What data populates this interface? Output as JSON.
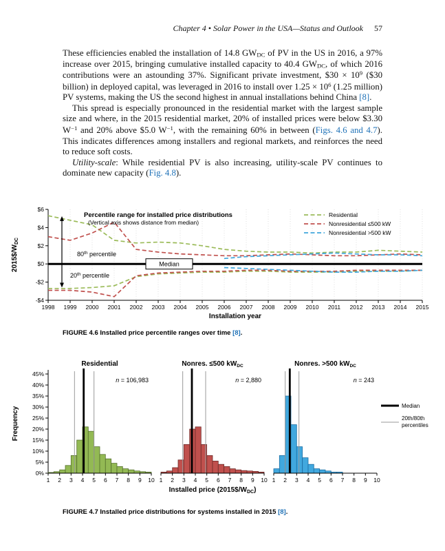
{
  "header": {
    "running_head": "Chapter 4 • Solar Power in the USA—Status and Outlook",
    "page_number": "57"
  },
  "paragraphs": {
    "p1": [
      {
        "t": "These efficiencies enabled the installation of 14.8 GW"
      },
      {
        "t": "DC",
        "s": "sub"
      },
      {
        "t": " of PV in the US in 2016, a 97% increase over 2015, bringing cumulative installed capacity to 40.4 GW"
      },
      {
        "t": "DC",
        "s": "sub"
      },
      {
        "t": ", of which 2016 contributions were an astounding 37%. Significant private investment, $30 × 10"
      },
      {
        "t": "9",
        "s": "sup"
      },
      {
        "t": " ($30 billion) in deployed capital, was leveraged in 2016 to install over 1.25 × 10"
      },
      {
        "t": "6",
        "s": "sup"
      },
      {
        "t": " (1.25 million) PV systems, making the US the second highest in annual installations behind China "
      },
      {
        "t": "[8]",
        "s": "link"
      },
      {
        "t": "."
      }
    ],
    "p2": [
      {
        "t": "This spread is especially pronounced in the residential market with the largest sample size and where, in the 2015 residential market, 20% of installed prices were below $3.30 W"
      },
      {
        "t": "−1",
        "s": "sup"
      },
      {
        "t": " and 20% above $5.0 W"
      },
      {
        "t": "−1",
        "s": "sup"
      },
      {
        "t": ", with the remaining 60% in between ("
      },
      {
        "t": "Figs. 4.6 and 4.7",
        "s": "link"
      },
      {
        "t": "). This indicates differences among installers and regional markets, and reinforces the need to reduce soft costs."
      }
    ],
    "p3": [
      {
        "t": "Utility-scale",
        "s": "i"
      },
      {
        "t": ": While residential PV is also increasing, utility-scale PV continues to dominate new capacity ("
      },
      {
        "t": "Fig. 4.8",
        "s": "link"
      },
      {
        "t": ")."
      }
    ]
  },
  "fig46_caption": [
    {
      "t": "FIGURE 4.6",
      "s": "b"
    },
    {
      "t": "  Installed price percentile ranges over time ",
      "s": ""
    },
    {
      "t": "[8]",
      "s": "link"
    },
    {
      "t": ".",
      "s": ""
    }
  ],
  "fig47_caption": [
    {
      "t": "FIGURE 4.7",
      "s": "b"
    },
    {
      "t": "  Installed price distributions for systems installed in 2015 ",
      "s": ""
    },
    {
      "t": "[8]",
      "s": "link"
    },
    {
      "t": ".",
      "s": ""
    }
  ],
  "chart_data": [
    {
      "id": "fig46",
      "type": "line",
      "title": "Percentile range for installed price distributions",
      "subtitle": "(Vertical axis shows distance from median)",
      "xlabel": "Installation year",
      "ylabel_main": "2015$/W",
      "ylabel_sub": "DC",
      "ylim": [
        -4,
        6
      ],
      "ytick_values": [
        6,
        4,
        2,
        0,
        -2,
        -4
      ],
      "ytick_labels": [
        "$6",
        "$4",
        "$2",
        "$0",
        "-$2",
        "-$4"
      ],
      "x": [
        1998,
        1999,
        2000,
        2001,
        2002,
        2003,
        2004,
        2005,
        2006,
        2007,
        2008,
        2009,
        2010,
        2011,
        2012,
        2013,
        2014,
        2015
      ],
      "median_value": 0,
      "median_label": "Median",
      "annotation_upper": "80th percentile",
      "annotation_lower": "20th percentile",
      "grid": "vertical-dotted",
      "legend_position": "top-right",
      "series": [
        {
          "name": "Residential",
          "color": "#9BBB59",
          "upper": [
            5.3,
            4.8,
            4.3,
            2.6,
            2.3,
            2.4,
            2.3,
            2.0,
            1.6,
            1.4,
            1.3,
            1.3,
            1.2,
            1.3,
            1.3,
            1.5,
            1.4,
            1.3
          ],
          "lower": [
            -2.7,
            -2.7,
            -2.6,
            -2.4,
            -1.4,
            -1.1,
            -1.0,
            -0.9,
            -0.9,
            -0.8,
            -0.8,
            -0.9,
            -0.9,
            -0.9,
            -0.8,
            -0.8,
            -0.8,
            -0.7
          ]
        },
        {
          "name": "Nonresidential ≤500 kW",
          "color": "#C0504D",
          "upper": [
            3.0,
            2.6,
            3.4,
            4.6,
            1.6,
            1.3,
            1.1,
            1.0,
            0.9,
            0.9,
            1.0,
            1.1,
            1.0,
            0.9,
            0.9,
            1.0,
            1.1,
            1.0
          ],
          "lower": [
            -2.9,
            -2.9,
            -3.1,
            -3.6,
            -1.3,
            -1.0,
            -0.9,
            -0.8,
            -0.8,
            -0.7,
            -0.7,
            -0.8,
            -0.8,
            -0.8,
            -0.7,
            -0.7,
            -0.7,
            -0.7
          ]
        },
        {
          "name": "Nonresidential >500 kW",
          "color": "#3FA6DC",
          "upper": [
            null,
            null,
            null,
            null,
            null,
            null,
            null,
            null,
            0.6,
            0.8,
            0.9,
            1.0,
            1.1,
            1.2,
            1.1,
            1.0,
            1.0,
            0.9
          ],
          "lower": [
            null,
            null,
            null,
            null,
            null,
            null,
            null,
            null,
            -0.4,
            -0.5,
            -0.6,
            -0.7,
            -0.8,
            -0.9,
            -0.9,
            -0.8,
            -0.8,
            -0.7
          ]
        }
      ]
    },
    {
      "id": "fig47",
      "type": "bar",
      "ylabel": "Frequency",
      "xlabel_main": "Installed price (2015$/W",
      "xlabel_sub": "DC",
      "xlabel_end": ")",
      "ylim": [
        0,
        45
      ],
      "ytick_step": 5,
      "ytick_labels": [
        "0%",
        "5%",
        "10%",
        "15%",
        "20%",
        "25%",
        "30%",
        "35%",
        "40%",
        "45%"
      ],
      "xtick_labels": [
        "1",
        "2",
        "3",
        "4",
        "5",
        "6",
        "7",
        "8",
        "9",
        "10"
      ],
      "bin_start": 1,
      "bin_width": 0.5,
      "panels": [
        {
          "title_main": "Residential",
          "title_sub": "",
          "n": "106,983",
          "fill": "#93B954",
          "stroke": "#55702C",
          "values": [
            0.3,
            0.7,
            1.5,
            3.5,
            8,
            15,
            21,
            19,
            12,
            8.5,
            6.5,
            4.5,
            3,
            2,
            1.5,
            1,
            0.7,
            0.5
          ],
          "median": 4.1,
          "p20": 3.3,
          "p80": 5.0
        },
        {
          "title_main": "Nonres. ≤500 kW",
          "title_sub": "DC",
          "n": "2,880",
          "fill": "#C0504D",
          "stroke": "#6E2B29",
          "values": [
            0.5,
            1,
            2.5,
            6,
            13,
            20,
            21,
            13,
            8,
            5.5,
            4,
            3,
            2,
            1.5,
            1.2,
            1,
            0.8,
            0.5
          ],
          "median": 3.7,
          "p20": 2.9,
          "p80": 4.9
        },
        {
          "title_main": "Nonres. >500 kW",
          "title_sub": "DC",
          "n": "243",
          "fill": "#41A8DE",
          "stroke": "#1C6EA4",
          "values": [
            2,
            8,
            35,
            22,
            12,
            7,
            4,
            2,
            1.5,
            1,
            0.5,
            0.5,
            0,
            0,
            0,
            0,
            0,
            0
          ],
          "median": 2.4,
          "p20": 2.0,
          "p80": 3.2
        }
      ],
      "legend": [
        {
          "label_lines": [
            "Median"
          ],
          "style": "thick"
        },
        {
          "label_lines": [
            "20th/80th",
            "percentiles"
          ],
          "style": "thin"
        }
      ]
    }
  ]
}
